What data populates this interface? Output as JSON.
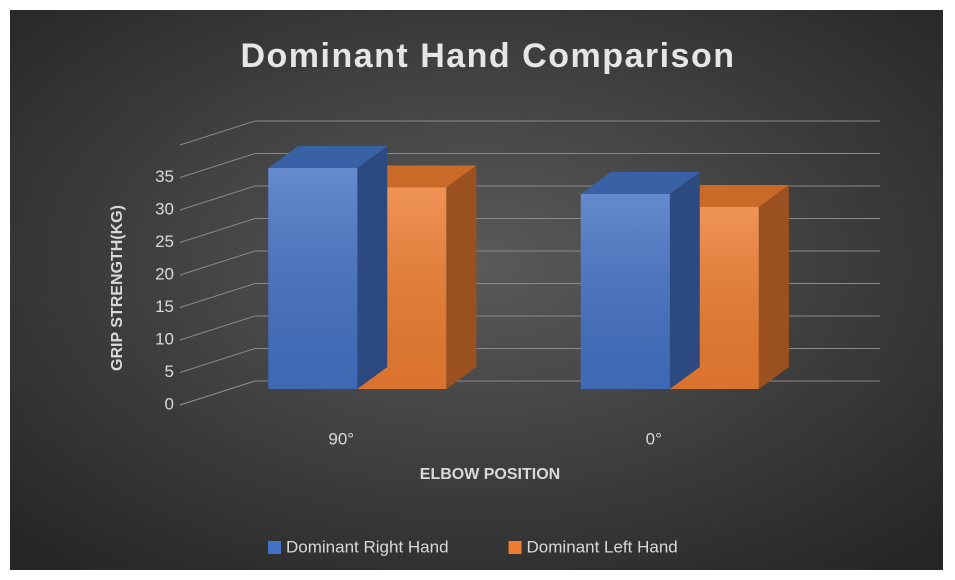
{
  "chart_data": {
    "type": "bar3d",
    "title": "Dominant Hand Comparison",
    "x_label": "ELBOW POSITION",
    "y_label": "GRIP STRENGTH(KG)",
    "categories": [
      "90°",
      "0°"
    ],
    "series": [
      {
        "name": "Dominant Right Hand",
        "color": "#4472c4",
        "values": [
          34,
          30
        ]
      },
      {
        "name": "Dominant Left Hand",
        "color": "#ed7d31",
        "values": [
          31,
          28
        ]
      }
    ],
    "ylim": [
      0,
      40
    ],
    "yticks": [
      0,
      5,
      10,
      15,
      20,
      25,
      30,
      35
    ],
    "grid": true,
    "legend": "bottom"
  }
}
